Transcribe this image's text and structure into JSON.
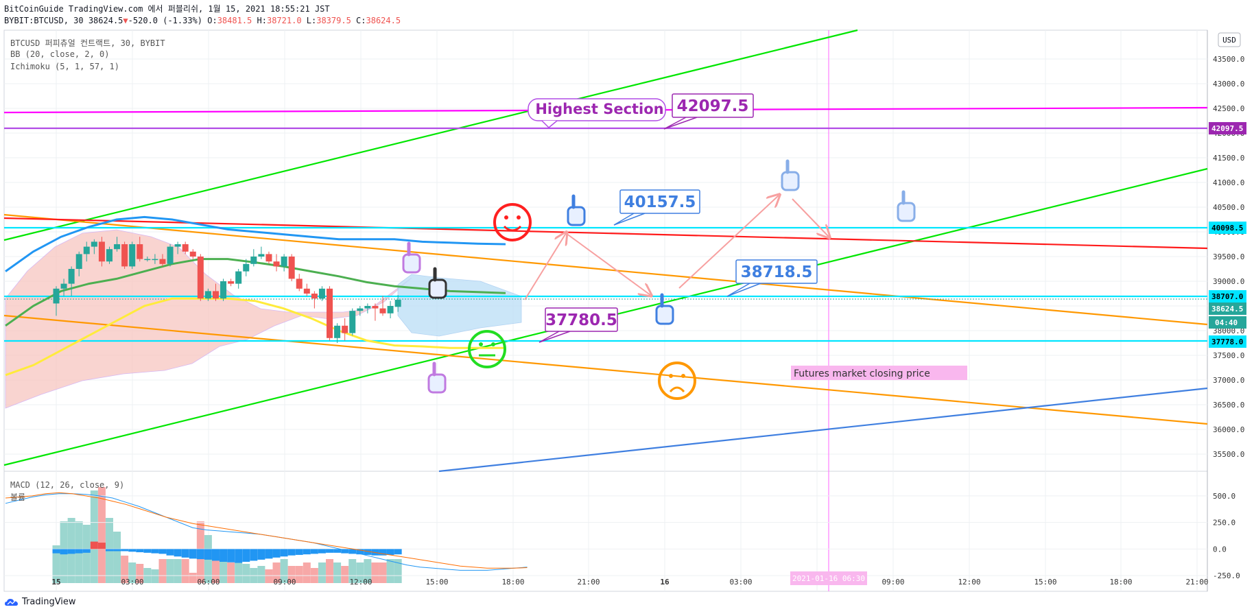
{
  "header": {
    "published": "BitCoinGuide TradingView.com 에서 퍼블리쉬, 1월 15, 2021 18:55:21 JST",
    "symbol": "BYBIT:BTCUSD, 30",
    "last": "38624.5",
    "change_arrow": "▼",
    "change": "-520.0 (-1.33%)",
    "o_label": "O:",
    "o": "38481.5",
    "h_label": "H:",
    "h": "38721.0",
    "l_label": "L:",
    "l": "38379.5",
    "c_label": "C:",
    "c": "38624.5"
  },
  "legend": {
    "instrument": "BTCUSD 퍼피츄얼 컨트랙트, 30, BYBIT",
    "bb": "BB (20, close, 2, 0)",
    "ichimoku": "Ichimoku (5, 1, 57, 1)",
    "macd": "MACD (12, 26, close, 9)",
    "volume": "볼륨"
  },
  "axis": {
    "currency": "USD",
    "countdown": "04:40",
    "crosshair_time": "2021-01-16  06:30"
  },
  "footer": {
    "brand": "TradingView"
  },
  "colors": {
    "up": "#26a69a",
    "down": "#ef5350",
    "green_line": "#00e600",
    "orange_line": "#ff9800",
    "red_line": "#ff1a1a",
    "magenta": "#ff00ff",
    "purple": "#9c27b0",
    "cyan": "#00e5ff",
    "blue_line": "#3f7fe0",
    "bb_upper": "#2196f3",
    "bb_basis": "#4caf50",
    "bb_lower": "#ffeb3b"
  },
  "chart_data": {
    "type": "candlestick",
    "x_ticks": [
      "15",
      "03:00",
      "06:00",
      "09:00",
      "12:00",
      "15:00",
      "18:00",
      "21:00",
      "16",
      "03:00",
      "06:00",
      "09:00",
      "12:00",
      "15:00",
      "18:00",
      "21:00"
    ],
    "y_ticks": [
      35500,
      36000,
      36500,
      37000,
      37500,
      38000,
      38500,
      39000,
      39500,
      40000,
      40500,
      41000,
      41500,
      42000,
      42500,
      43000,
      43500
    ],
    "y_range": [
      35100,
      43950
    ],
    "price_labels": [
      {
        "value": 42097.5,
        "text": "42097.5",
        "color": "#9c27b0"
      },
      {
        "value": 40098.5,
        "text": "40098.5",
        "color": "#00e5ff"
      },
      {
        "value": 38707.0,
        "text": "38707.0",
        "color": "#00e5ff"
      },
      {
        "value": 38624.5,
        "text": "38624.5",
        "color": "#26a69a"
      },
      {
        "value": 37778.0,
        "text": "37778.0",
        "color": "#00e5ff"
      }
    ],
    "callouts": [
      {
        "text": "42097.5",
        "color": "#9c27b0",
        "value": 42097.5
      },
      {
        "text": "40157.5",
        "color": "#3f7fe0",
        "value": 40157.5
      },
      {
        "text": "38718.5",
        "color": "#3f7fe0",
        "value": 38718.5
      },
      {
        "text": "37780.5",
        "color": "#9c27b0",
        "value": 37780.5
      }
    ],
    "annotations": [
      "Highest Section",
      "Futures market closing price"
    ],
    "candles": [
      [
        38550,
        38900,
        38300,
        38850
      ],
      [
        38850,
        39050,
        38700,
        38950
      ],
      [
        38950,
        39300,
        38700,
        39250
      ],
      [
        39250,
        39600,
        39100,
        39550
      ],
      [
        39550,
        39800,
        39400,
        39700
      ],
      [
        39700,
        39850,
        39550,
        39800
      ],
      [
        39800,
        39900,
        39300,
        39400
      ],
      [
        39400,
        39700,
        39350,
        39650
      ],
      [
        39650,
        39900,
        39600,
        39750
      ],
      [
        39750,
        39800,
        39250,
        39300
      ],
      [
        39300,
        39800,
        39250,
        39750
      ],
      [
        39750,
        39900,
        39400,
        39450
      ],
      [
        39450,
        39500,
        39400,
        39450
      ],
      [
        39450,
        39550,
        39350,
        39450
      ],
      [
        39450,
        39550,
        39300,
        39350
      ],
      [
        39350,
        39750,
        39300,
        39700
      ],
      [
        39700,
        39800,
        39550,
        39750
      ],
      [
        39750,
        39800,
        39550,
        39600
      ],
      [
        39600,
        39650,
        39450,
        39500
      ],
      [
        39500,
        39550,
        38600,
        38650
      ],
      [
        38650,
        38850,
        38600,
        38800
      ],
      [
        38800,
        38950,
        38600,
        38650
      ],
      [
        38650,
        39050,
        38600,
        39000
      ],
      [
        39000,
        39050,
        38900,
        38950
      ],
      [
        38950,
        39250,
        38850,
        39200
      ],
      [
        39200,
        39450,
        39100,
        39350
      ],
      [
        39350,
        39650,
        39300,
        39500
      ],
      [
        39500,
        39700,
        39450,
        39550
      ],
      [
        39550,
        39600,
        39350,
        39400
      ],
      [
        39400,
        39550,
        39200,
        39300
      ],
      [
        39300,
        39550,
        39200,
        39500
      ],
      [
        39500,
        39550,
        39000,
        39050
      ],
      [
        39050,
        39150,
        38800,
        38850
      ],
      [
        38850,
        38950,
        38700,
        38750
      ],
      [
        38750,
        38800,
        38450,
        38650
      ],
      [
        38650,
        38900,
        38600,
        38850
      ],
      [
        38850,
        38900,
        37800,
        37850
      ],
      [
        37850,
        38150,
        37750,
        38100
      ],
      [
        38100,
        38250,
        37800,
        37950
      ],
      [
        37950,
        38450,
        37900,
        38400
      ],
      [
        38400,
        38500,
        38300,
        38450
      ],
      [
        38450,
        38550,
        38350,
        38500
      ],
      [
        38500,
        38550,
        38200,
        38450
      ],
      [
        38450,
        38700,
        38300,
        38350
      ],
      [
        38350,
        38600,
        38250,
        38500
      ],
      [
        38481.5,
        38721,
        38379.5,
        38624.5
      ]
    ],
    "indicators": {
      "bb_upper": [
        39200,
        39600,
        39900,
        40100,
        40250,
        40300,
        40250,
        40150,
        40050,
        40000,
        39950,
        39900,
        39850,
        39850,
        39850,
        39800,
        39780,
        39760,
        39750
      ],
      "bb_basis": [
        38100,
        38500,
        38800,
        38950,
        39050,
        39200,
        39350,
        39450,
        39450,
        39380,
        39300,
        39200,
        39100,
        38980,
        38900,
        38850,
        38800,
        38780,
        38760
      ],
      "bb_lower": [
        37100,
        37300,
        37600,
        37900,
        38200,
        38500,
        38650,
        38650,
        38650,
        38600,
        38450,
        38250,
        38000,
        37800,
        37700,
        37680,
        37650,
        37650,
        37650
      ]
    },
    "macd_panel": {
      "y_ticks": [
        -250.0,
        0.0,
        250.0,
        500.0
      ],
      "y_range": [
        -320,
        680
      ]
    }
  }
}
